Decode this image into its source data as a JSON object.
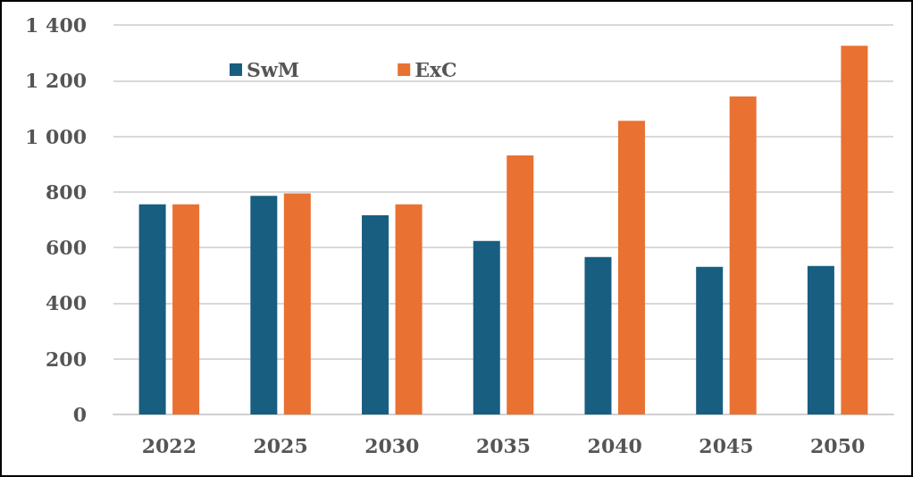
{
  "chart_data": {
    "type": "bar",
    "categories": [
      "2022",
      "2025",
      "2030",
      "2035",
      "2040",
      "2045",
      "2050"
    ],
    "series": [
      {
        "name": "SwM",
        "color": "#175e80",
        "values": [
          755,
          786,
          716,
          624,
          566,
          531,
          534
        ]
      },
      {
        "name": "ExC",
        "color": "#e97132",
        "values": [
          755,
          795,
          755,
          931,
          1056,
          1143,
          1325
        ]
      }
    ],
    "ylim": [
      0,
      1400
    ],
    "yticks": [
      0,
      200,
      400,
      600,
      800,
      {
        "value": 1000,
        "label": "1 000"
      },
      {
        "value": 1200,
        "label": "1 200"
      },
      {
        "value": 1400,
        "label": "1 400"
      }
    ],
    "grid": "y",
    "legend": "top left"
  }
}
